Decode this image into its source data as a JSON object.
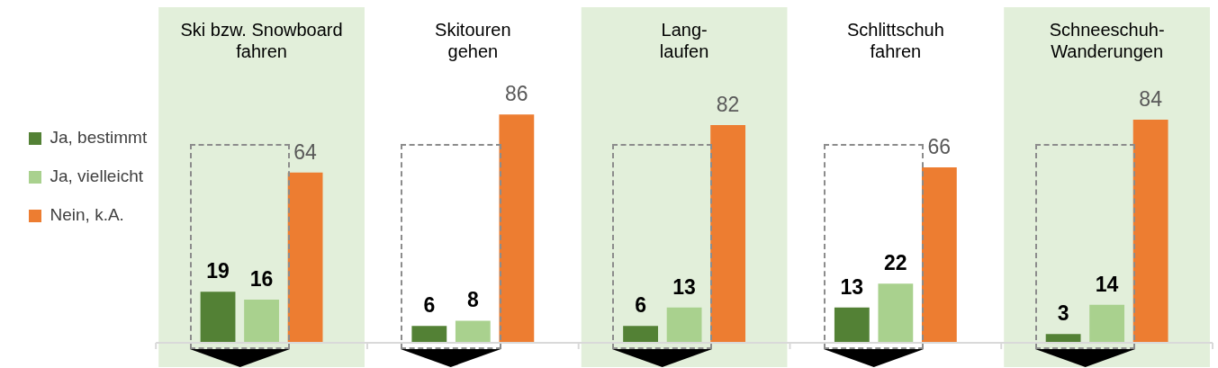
{
  "chart_data": {
    "type": "bar",
    "categories": [
      "Ski bzw. Snowboard\nfahren",
      "Skitouren\ngehen",
      "Lang-\nlaufen",
      "Schlittschuh\nfahren",
      "Schneeschuh-\nWanderungen"
    ],
    "series": [
      {
        "name": "Ja, bestimmt",
        "color": "#538135",
        "values": [
          19,
          6,
          6,
          13,
          3
        ]
      },
      {
        "name": "Ja, vielleicht",
        "color": "#a9d18e",
        "values": [
          16,
          8,
          13,
          22,
          14
        ]
      },
      {
        "name": "Nein, k.A.",
        "color": "#ed7d31",
        "values": [
          64,
          86,
          82,
          66,
          84
        ]
      }
    ],
    "bands": [
      {
        "axis": "x",
        "from": "Ski bzw. Snowboard\nfahren",
        "to": "Ski bzw. Snowboard\nfahren",
        "color": "#e2efda"
      },
      {
        "axis": "x",
        "from": "Lang-\nlaufen",
        "to": "Lang-\nlaufen",
        "color": "#e2efda"
      },
      {
        "axis": "x",
        "from": "Schneeschuh-\nWanderungen",
        "to": "Schneeschuh-\nWanderungen",
        "color": "#e2efda"
      }
    ],
    "data_labels": true,
    "legend": "left",
    "grid": false
  }
}
